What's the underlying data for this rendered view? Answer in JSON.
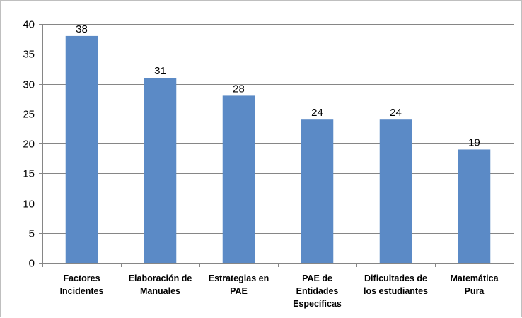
{
  "chart_data": {
    "type": "bar",
    "title": "",
    "xlabel": "",
    "ylabel": "",
    "categories": [
      [
        "Factores",
        "Incidentes"
      ],
      [
        "Elaboración de",
        "Manuales"
      ],
      [
        "Estrategias en",
        "PAE"
      ],
      [
        "PAE de",
        "Entidades",
        "Específicas"
      ],
      [
        "Dificultades de",
        "los estudiantes"
      ],
      [
        "Matemática",
        "Pura"
      ]
    ],
    "values": [
      38,
      31,
      28,
      24,
      24,
      19
    ],
    "data_labels": [
      "38",
      "31",
      "28",
      "24",
      "24",
      "19"
    ],
    "ylim": [
      0,
      40
    ],
    "yticks": [
      0,
      5,
      10,
      15,
      20,
      25,
      30,
      35,
      40
    ],
    "grid": true,
    "legend": "none",
    "colors": {
      "bar": "#5B8AC6",
      "grid": "#868686",
      "axis": "#868686"
    }
  }
}
